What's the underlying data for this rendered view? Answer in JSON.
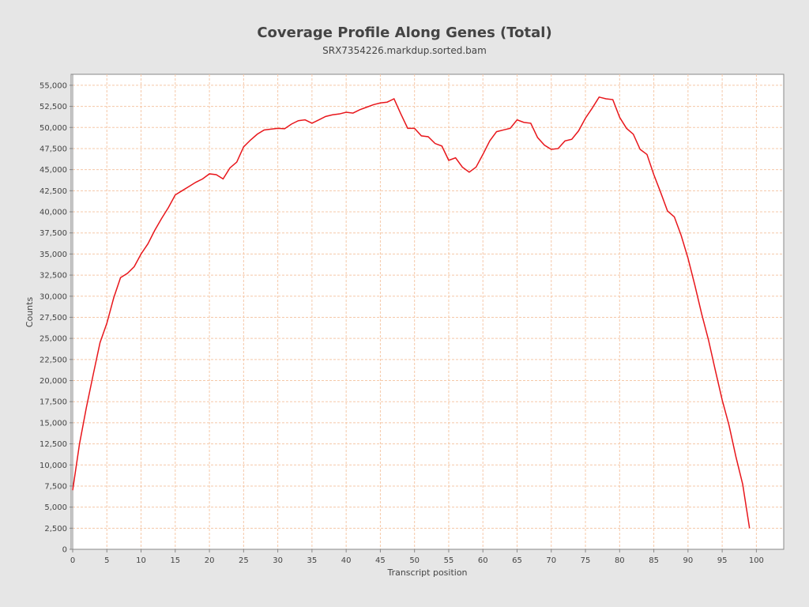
{
  "chart_data": {
    "type": "line",
    "title": "Coverage Profile Along Genes (Total)",
    "subtitle": "SRX7354226.markdup.sorted.bam",
    "xlabel": "Transcript position",
    "ylabel": "Counts",
    "xlim": [
      0,
      104
    ],
    "ylim": [
      0,
      56300
    ],
    "grid": true,
    "x_ticks": [
      0,
      5,
      10,
      15,
      20,
      25,
      30,
      35,
      40,
      45,
      50,
      55,
      60,
      65,
      70,
      75,
      80,
      85,
      90,
      95,
      100
    ],
    "y_ticks": [
      0,
      2500,
      5000,
      7500,
      10000,
      12500,
      15000,
      17500,
      20000,
      22500,
      25000,
      27500,
      30000,
      32500,
      35000,
      37500,
      40000,
      42500,
      45000,
      47500,
      50000,
      52500,
      55000
    ],
    "y_tick_labels": [
      "0",
      "2,500",
      "5,000",
      "7,500",
      "10,000",
      "12,500",
      "15,000",
      "17,500",
      "20,000",
      "22,500",
      "25,000",
      "27,500",
      "30,000",
      "32,500",
      "35,000",
      "37,500",
      "40,000",
      "42,500",
      "45,000",
      "47,500",
      "50,000",
      "52,500",
      "55,000"
    ],
    "colors": {
      "line": "#e8161b",
      "grid": "#f5c8a8",
      "plot_bg": "#ffffff",
      "axis": "#888888",
      "page_bg": "#e6e6e6"
    },
    "x": [
      0,
      1,
      2,
      3,
      4,
      5,
      6,
      7,
      8,
      9,
      10,
      11,
      12,
      13,
      14,
      15,
      16,
      17,
      18,
      19,
      20,
      21,
      22,
      23,
      24,
      25,
      26,
      27,
      28,
      29,
      30,
      31,
      32,
      33,
      34,
      35,
      36,
      37,
      38,
      39,
      40,
      41,
      42,
      43,
      44,
      45,
      46,
      47,
      48,
      49,
      50,
      51,
      52,
      53,
      54,
      55,
      56,
      57,
      58,
      59,
      60,
      61,
      62,
      63,
      64,
      65,
      66,
      67,
      68,
      69,
      70,
      71,
      72,
      73,
      74,
      75,
      76,
      77,
      78,
      79,
      80,
      81,
      82,
      83,
      84,
      85,
      86,
      87,
      88,
      89,
      90,
      91,
      92,
      93,
      94,
      95,
      96,
      97,
      98,
      99
    ],
    "values": [
      7000,
      12500,
      16800,
      20700,
      24500,
      26800,
      29800,
      32200,
      32700,
      33500,
      35000,
      36200,
      37800,
      39200,
      40500,
      42000,
      42500,
      43000,
      43500,
      43900,
      44500,
      44400,
      43900,
      45200,
      45900,
      47700,
      48500,
      49200,
      49700,
      49800,
      49900,
      49850,
      50400,
      50800,
      50900,
      50500,
      50900,
      51300,
      51500,
      51600,
      51800,
      51700,
      52100,
      52400,
      52700,
      52900,
      53000,
      53400,
      51600,
      49900,
      49900,
      49000,
      48900,
      48100,
      47800,
      46100,
      46400,
      45300,
      44700,
      45300,
      46800,
      48400,
      49500,
      49700,
      49900,
      50900,
      50600,
      50500,
      48800,
      47900,
      47400,
      47500,
      48400,
      48600,
      49600,
      51100,
      52300,
      53600,
      53400,
      53300,
      51200,
      49900,
      49200,
      47400,
      46800,
      44400,
      42300,
      40100,
      39400,
      37200,
      34500,
      31300,
      27900,
      24800,
      21200,
      17700,
      14700,
      11000,
      7700,
      2500
    ]
  }
}
